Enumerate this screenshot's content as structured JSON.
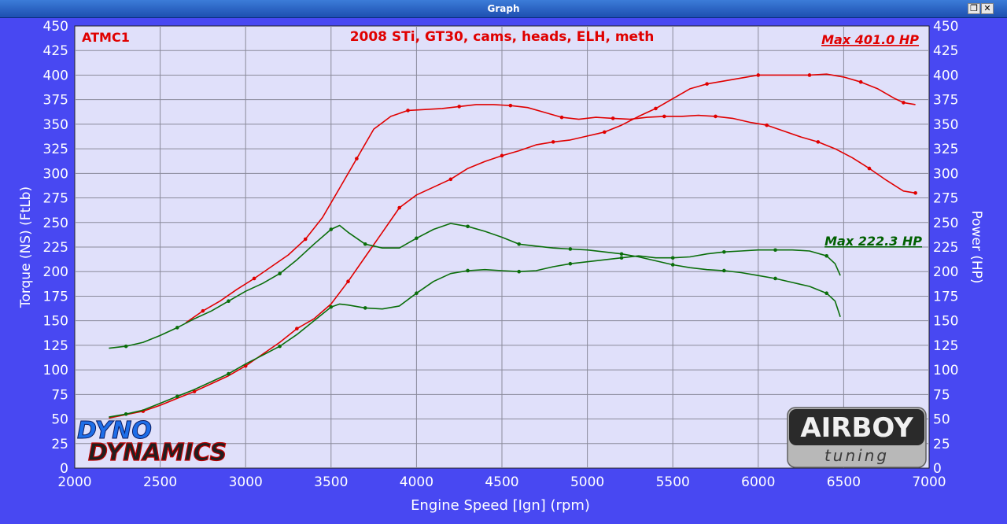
{
  "window": {
    "title": "Graph",
    "restore_glyph": "❐",
    "close_glyph": "✕"
  },
  "logos": {
    "dyno_dynamics": {
      "line1": "DYNO",
      "line2": "DYNAMICS"
    },
    "airboy": {
      "line1": "AIRBOY",
      "line2": "tuning"
    }
  },
  "chart_data": {
    "type": "line",
    "title": "2008 STi, GT30, cams, heads, ELH, meth",
    "run_label": "ATMC1",
    "xlabel": "Engine Speed [Ign] (rpm)",
    "ylabel_left": "Torque (NS) (FtLb)",
    "ylabel_right": "Power (HP)",
    "xlim": [
      2000,
      7000
    ],
    "ylim": [
      0,
      450
    ],
    "x_ticks": [
      2000,
      2500,
      3000,
      3500,
      4000,
      4500,
      5000,
      5500,
      6000,
      6500,
      7000
    ],
    "y_ticks": [
      0,
      25,
      50,
      75,
      100,
      125,
      150,
      175,
      200,
      225,
      250,
      275,
      300,
      325,
      350,
      375,
      400,
      425,
      450
    ],
    "grid": true,
    "annotations": [
      {
        "text": "Max 401.0 HP",
        "color": "#e00000"
      },
      {
        "text": "Max 222.3 HP",
        "color": "#006000"
      }
    ],
    "colors": {
      "plot_bg": "#e0e0fa",
      "frame_bg": "#4848f2",
      "red": "#e00000",
      "green": "#0a6e0a",
      "grid": "#8a8a9a"
    },
    "series": [
      {
        "kind": "torque",
        "color": "red",
        "x": [
          2650,
          2750,
          2850,
          2950,
          3050,
          3150,
          3250,
          3350,
          3450,
          3550,
          3650,
          3750,
          3850,
          3950,
          4050,
          4150,
          4250,
          4350,
          4450,
          4550,
          4650,
          4750,
          4850,
          4950,
          5050,
          5150,
          5250,
          5350,
          5450,
          5550,
          5650,
          5750,
          5850,
          5950,
          6050,
          6150,
          6250,
          6350,
          6450,
          6550,
          6650,
          6750,
          6850,
          6920
        ],
        "y": [
          148,
          160,
          170,
          182,
          193,
          205,
          217,
          233,
          255,
          285,
          315,
          345,
          358,
          364,
          365,
          366,
          368,
          370,
          370,
          369,
          367,
          362,
          357,
          355,
          357,
          356,
          355,
          357,
          358,
          358,
          359,
          358,
          356,
          352,
          349,
          343,
          337,
          332,
          325,
          316,
          305,
          293,
          282,
          280
        ]
      },
      {
        "kind": "power",
        "color": "red",
        "x": [
          2200,
          2400,
          2500,
          2600,
          2700,
          2800,
          2900,
          3000,
          3100,
          3200,
          3300,
          3400,
          3500,
          3600,
          3700,
          3800,
          3900,
          4000,
          4100,
          4200,
          4300,
          4400,
          4500,
          4600,
          4700,
          4800,
          4900,
          5000,
          5100,
          5200,
          5300,
          5400,
          5500,
          5600,
          5700,
          5800,
          5900,
          6000,
          6100,
          6200,
          6300,
          6400,
          6500,
          6600,
          6700,
          6800,
          6850,
          6920
        ],
        "y": [
          51,
          58,
          64,
          71,
          78,
          86,
          94,
          104,
          116,
          128,
          142,
          152,
          167,
          190,
          215,
          240,
          265,
          278,
          286,
          294,
          305,
          312,
          318,
          323,
          329,
          332,
          334,
          338,
          342,
          349,
          358,
          366,
          376,
          386,
          391,
          394,
          397,
          400,
          400,
          400,
          400,
          401,
          398,
          393,
          386,
          376,
          372,
          370
        ]
      },
      {
        "kind": "torque",
        "color": "green",
        "x": [
          2200,
          2300,
          2400,
          2500,
          2600,
          2700,
          2800,
          2900,
          3000,
          3100,
          3200,
          3300,
          3400,
          3500,
          3550,
          3600,
          3700,
          3800,
          3900,
          4000,
          4100,
          4200,
          4300,
          4400,
          4500,
          4600,
          4700,
          4800,
          4900,
          5000,
          5100,
          5200,
          5300,
          5400,
          5500,
          5600,
          5700,
          5800,
          5900,
          6000,
          6100,
          6200,
          6300,
          6400,
          6450,
          6480
        ],
        "y": [
          122,
          124,
          128,
          135,
          143,
          152,
          160,
          170,
          180,
          188,
          198,
          212,
          228,
          243,
          247,
          240,
          228,
          224,
          224,
          234,
          243,
          249,
          246,
          241,
          235,
          228,
          226,
          224,
          223,
          222,
          220,
          218,
          215,
          211,
          207,
          204,
          202,
          201,
          199,
          196,
          193,
          189,
          185,
          178,
          170,
          154
        ]
      },
      {
        "kind": "power",
        "color": "green",
        "x": [
          2200,
          2300,
          2400,
          2500,
          2600,
          2700,
          2800,
          2900,
          3000,
          3100,
          3200,
          3300,
          3400,
          3500,
          3550,
          3600,
          3700,
          3800,
          3900,
          4000,
          4100,
          4200,
          4300,
          4400,
          4500,
          4600,
          4700,
          4800,
          4900,
          5000,
          5100,
          5200,
          5300,
          5400,
          5500,
          5600,
          5700,
          5800,
          5900,
          6000,
          6100,
          6200,
          6300,
          6400,
          6450,
          6480
        ],
        "y": [
          52,
          55,
          59,
          66,
          73,
          80,
          88,
          96,
          106,
          115,
          124,
          136,
          150,
          164,
          167,
          166,
          163,
          162,
          165,
          178,
          190,
          198,
          201,
          202,
          201,
          200,
          201,
          205,
          208,
          210,
          212,
          214,
          216,
          214,
          214,
          215,
          218,
          220,
          221,
          222,
          222,
          222,
          221,
          216,
          208,
          196
        ]
      }
    ]
  }
}
